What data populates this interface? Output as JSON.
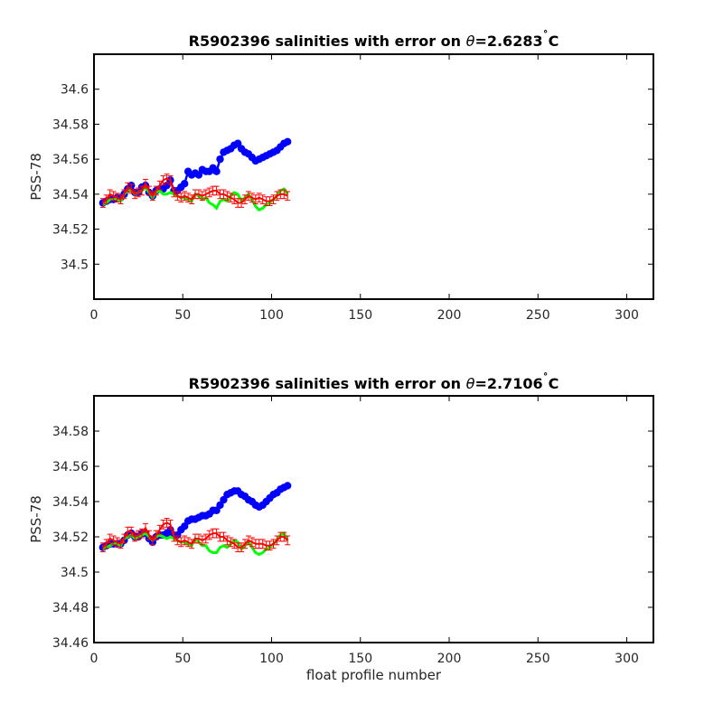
{
  "colors": {
    "calibrated": "#0000ff",
    "original": "#00ff00",
    "error_bars": "#ff0000",
    "axes": "#000000"
  },
  "chart_data": [
    {
      "type": "scatter",
      "title": "R5902396 salinities with error on θ=2.6283˚C",
      "title_parts": {
        "prefix": "R5902396 salinities with error on ",
        "theta": "θ",
        "value": "=2.6283",
        "degree": "˚",
        "unit": "C"
      },
      "xlabel": "",
      "ylabel": "PSS-78",
      "xlim": [
        0,
        315
      ],
      "ylim": [
        34.48,
        34.62
      ],
      "xticks": [
        0,
        50,
        100,
        150,
        200,
        250,
        300
      ],
      "xtick_labels": [
        "0",
        "50",
        "100",
        "150",
        "200",
        "250",
        "300"
      ],
      "yticks": [
        34.5,
        34.52,
        34.54,
        34.56,
        34.58,
        34.6
      ],
      "ytick_labels": [
        "34.5",
        "34.52",
        "34.54",
        "34.56",
        "34.58",
        "34.6"
      ],
      "x": [
        5,
        7,
        9,
        11,
        13,
        15,
        17,
        19,
        21,
        23,
        25,
        27,
        29,
        31,
        33,
        35,
        37,
        39,
        41,
        43,
        45,
        47,
        49,
        51,
        53,
        55,
        57,
        59,
        61,
        63,
        65,
        67,
        69,
        71,
        73,
        75,
        77,
        79,
        81,
        83,
        85,
        87,
        89,
        91,
        93,
        95,
        97,
        99,
        101,
        103,
        105,
        107,
        109
      ],
      "series": [
        {
          "values": [
            34.535,
            34.536,
            34.537,
            34.537,
            34.538,
            34.538,
            34.54,
            34.543,
            34.545,
            34.541,
            34.541,
            34.544,
            34.545,
            34.541,
            34.539,
            34.542,
            34.543,
            34.543,
            34.545,
            34.548,
            34.542,
            34.542,
            34.544,
            34.546,
            34.553,
            34.551,
            34.552,
            34.551,
            34.554,
            34.553,
            34.553,
            34.555,
            34.553,
            34.56,
            34.564,
            34.565,
            34.566,
            34.568,
            34.569,
            34.566,
            34.564,
            34.563,
            34.561,
            34.559,
            34.56,
            34.561,
            34.562,
            34.563,
            34.564,
            34.565,
            34.567,
            34.569,
            34.57
          ],
          "style": "dots"
        },
        {
          "values": [
            34.534,
            34.535,
            34.537,
            34.537,
            34.537,
            34.536,
            34.54,
            34.542,
            34.542,
            34.54,
            34.541,
            34.542,
            34.544,
            34.541,
            34.538,
            34.541,
            34.542,
            34.54,
            34.54,
            34.541,
            34.54,
            34.539,
            34.538,
            34.538,
            34.537,
            34.536,
            34.54,
            34.539,
            34.537,
            34.538,
            34.535,
            34.534,
            34.532,
            34.536,
            34.537,
            34.536,
            34.539,
            34.541,
            34.54,
            34.536,
            34.538,
            34.54,
            34.537,
            34.533,
            34.531,
            34.532,
            34.534,
            34.535,
            34.537,
            34.539,
            34.542,
            34.543,
            34.54
          ],
          "style": "line"
        },
        {
          "values": [
            34.535,
            34.537,
            34.54,
            34.539,
            34.538,
            34.537,
            34.54,
            34.544,
            34.543,
            34.54,
            34.541,
            34.542,
            34.546,
            34.542,
            34.539,
            34.542,
            34.545,
            34.548,
            34.549,
            34.548,
            34.541,
            34.539,
            34.538,
            34.539,
            34.538,
            34.537,
            34.54,
            34.54,
            34.539,
            34.54,
            34.541,
            34.542,
            34.542,
            34.54,
            34.54,
            34.539,
            34.538,
            34.537,
            34.535,
            34.535,
            34.537,
            34.539,
            34.538,
            34.537,
            34.538,
            34.537,
            34.536,
            34.536,
            34.537,
            34.539,
            34.54,
            34.54,
            34.539
          ],
          "error": 0.0025,
          "style": "error-bars"
        }
      ]
    },
    {
      "type": "scatter",
      "title": "R5902396 salinities with error on θ=2.7106˚C",
      "title_parts": {
        "prefix": "R5902396 salinities with error on ",
        "theta": "θ",
        "value": "=2.7106",
        "degree": "˚",
        "unit": "C"
      },
      "xlabel": "float profile number",
      "ylabel": "PSS-78",
      "xlim": [
        0,
        315
      ],
      "ylim": [
        34.46,
        34.6
      ],
      "xticks": [
        0,
        50,
        100,
        150,
        200,
        250,
        300
      ],
      "xtick_labels": [
        "0",
        "50",
        "100",
        "150",
        "200",
        "250",
        "300"
      ],
      "yticks": [
        34.46,
        34.48,
        34.5,
        34.52,
        34.54,
        34.56,
        34.58
      ],
      "ytick_labels": [
        "34.46",
        "34.48",
        "34.5",
        "34.52",
        "34.54",
        "34.56",
        "34.58"
      ],
      "x": [
        5,
        7,
        9,
        11,
        13,
        15,
        17,
        19,
        21,
        23,
        25,
        27,
        29,
        31,
        33,
        35,
        37,
        39,
        41,
        43,
        45,
        47,
        49,
        51,
        53,
        55,
        57,
        59,
        61,
        63,
        65,
        67,
        69,
        71,
        73,
        75,
        77,
        79,
        81,
        83,
        85,
        87,
        89,
        91,
        93,
        95,
        97,
        99,
        101,
        103,
        105,
        107,
        109
      ],
      "series": [
        {
          "values": [
            34.514,
            34.515,
            34.516,
            34.516,
            34.516,
            34.516,
            34.518,
            34.521,
            34.522,
            34.52,
            34.52,
            34.522,
            34.522,
            34.519,
            34.517,
            34.52,
            34.521,
            34.521,
            34.522,
            34.524,
            34.521,
            34.521,
            34.524,
            34.526,
            34.529,
            34.53,
            34.53,
            34.531,
            34.532,
            34.532,
            34.533,
            34.535,
            34.535,
            34.538,
            34.541,
            34.544,
            34.545,
            34.546,
            34.546,
            34.544,
            34.543,
            34.541,
            34.54,
            34.538,
            34.537,
            34.538,
            34.54,
            34.542,
            34.544,
            34.545,
            34.547,
            34.548,
            34.549
          ],
          "style": "dots"
        },
        {
          "values": [
            34.513,
            34.514,
            34.515,
            34.516,
            34.516,
            34.515,
            34.519,
            34.52,
            34.521,
            34.519,
            34.52,
            34.521,
            34.522,
            34.52,
            34.518,
            34.52,
            34.521,
            34.52,
            34.519,
            34.52,
            34.519,
            34.518,
            34.517,
            34.517,
            34.516,
            34.515,
            34.519,
            34.517,
            34.515,
            34.515,
            34.512,
            34.511,
            34.511,
            34.514,
            34.515,
            34.514,
            34.516,
            34.518,
            34.517,
            34.513,
            34.515,
            34.517,
            34.514,
            34.511,
            34.51,
            34.511,
            34.513,
            34.514,
            34.516,
            34.518,
            34.521,
            34.522,
            34.518
          ],
          "style": "line"
        },
        {
          "values": [
            34.514,
            34.516,
            34.519,
            34.518,
            34.517,
            34.516,
            34.519,
            34.523,
            34.523,
            34.52,
            34.521,
            34.522,
            34.525,
            34.521,
            34.518,
            34.521,
            34.524,
            34.527,
            34.528,
            34.527,
            34.52,
            34.518,
            34.517,
            34.518,
            34.517,
            34.516,
            34.519,
            34.519,
            34.518,
            34.519,
            34.521,
            34.522,
            34.522,
            34.52,
            34.52,
            34.518,
            34.517,
            34.516,
            34.514,
            34.514,
            34.516,
            34.518,
            34.517,
            34.516,
            34.516,
            34.516,
            34.515,
            34.515,
            34.516,
            34.518,
            34.52,
            34.52,
            34.518
          ],
          "error": 0.0025,
          "style": "error-bars"
        }
      ]
    }
  ]
}
